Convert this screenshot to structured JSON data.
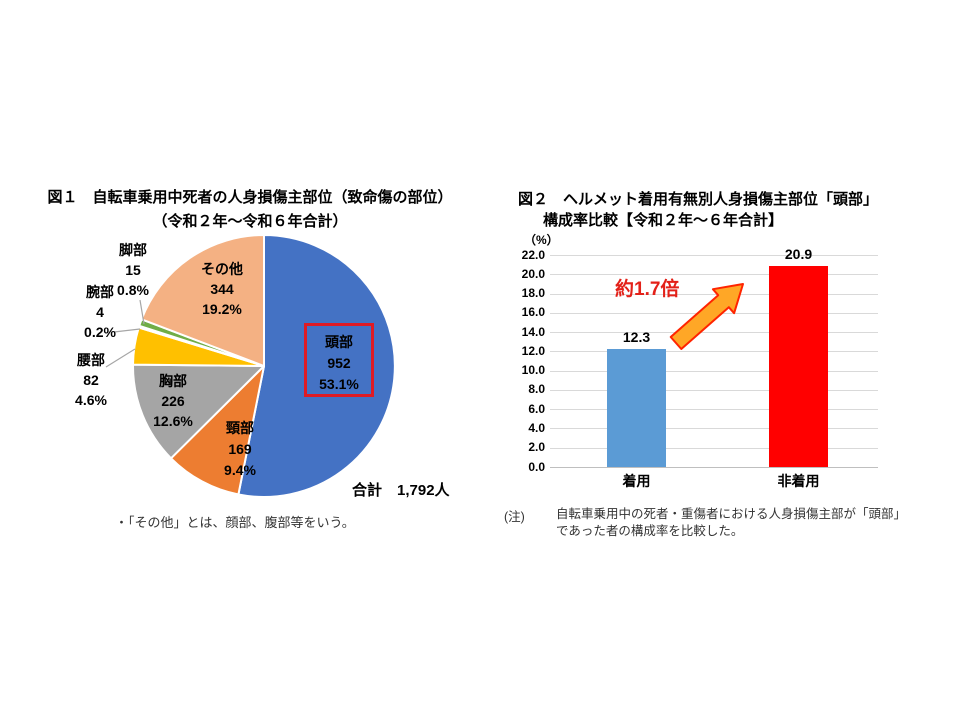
{
  "figure1": {
    "title_line1": "図１　自転車乗用中死者の人身損傷主部位（致命傷の部位）",
    "title_line2": "（令和２年～令和６年合計）",
    "total_label": "合計　1,792人",
    "footnote": "・「その他」とは、顔部、腹部等をいう。"
  },
  "figure2": {
    "title_line1": "図２　ヘルメット着用有無別人身損傷主部位「頭部」",
    "title_line2": "構成率比較【令和２年～６年合計】",
    "note_label": "(注)",
    "note_line1": "自転車乗用中の死者・重傷者における人身損傷主部が「頭部」",
    "note_line2": "であった者の構成率を比較した。"
  },
  "chart_data": [
    {
      "type": "pie",
      "title": "自転車乗用中死者の人身損傷主部位（致命傷の部位）",
      "subtitle": "令和２年～令和６年合計",
      "total": 1792,
      "total_unit": "人",
      "start_angle": "top",
      "direction": "clockwise",
      "slices": [
        {
          "label": "頭部",
          "count": 952,
          "pct": "53.1%",
          "color": "#4472C4",
          "highlighted": true
        },
        {
          "label": "頸部",
          "count": 169,
          "pct": "9.4%",
          "color": "#ED7D31",
          "highlighted": false
        },
        {
          "label": "胸部",
          "count": 226,
          "pct": "12.6%",
          "color": "#A5A5A5",
          "highlighted": false
        },
        {
          "label": "腰部",
          "count": 82,
          "pct": "4.6%",
          "color": "#FFC000",
          "highlighted": false
        },
        {
          "label": "腕部",
          "count": 4,
          "pct": "0.2%",
          "color": "#5B9BD5",
          "highlighted": false
        },
        {
          "label": "脚部",
          "count": 15,
          "pct": "0.8%",
          "color": "#70AD47",
          "highlighted": false
        },
        {
          "label": "その他",
          "count": 344,
          "pct": "19.2%",
          "color": "#F4B183",
          "highlighted": false
        }
      ]
    },
    {
      "type": "bar",
      "title": "ヘルメット着用有無別人身損傷主部位「頭部」構成率比較【令和２年～６年合計】",
      "categories": [
        "着用",
        "非着用"
      ],
      "values": [
        12.3,
        20.9
      ],
      "value_labels": [
        "12.3",
        "20.9"
      ],
      "colors": [
        "#5B9BD5",
        "#FF0000"
      ],
      "ylabel": "（%）",
      "ylim": [
        0,
        22
      ],
      "ytick_step": 2,
      "grid": true,
      "annotation": "約1.7倍"
    }
  ],
  "colors": {
    "highlight_red": "#e01b24",
    "annotation_red": "#e32119",
    "arrow_fill": "#FFA726",
    "arrow_stroke": "#FF2400",
    "gridline": "#D9D9D9",
    "axis_line": "#BFBFBF"
  }
}
